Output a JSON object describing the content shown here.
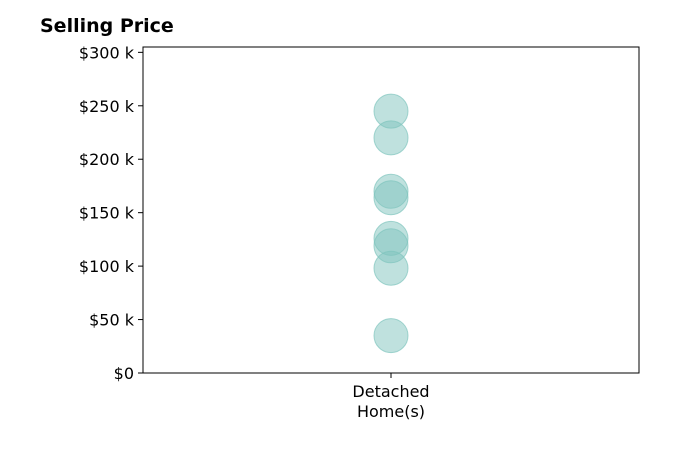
{
  "chart_data": {
    "type": "scatter",
    "title": "Selling Price",
    "xlabel": "",
    "ylabel": "",
    "categories": [
      "Detached\nHome(s)"
    ],
    "category_label_lines": [
      "Detached",
      "Home(s)"
    ],
    "ylim": [
      0,
      305000
    ],
    "yticks": [
      0,
      50000,
      100000,
      150000,
      200000,
      250000,
      300000
    ],
    "ytick_labels": [
      "$0",
      "$50 k",
      "$100 k",
      "$150 k",
      "$200 k",
      "$250 k",
      "$300 k"
    ],
    "grid": false,
    "legend": "none",
    "point_color": "#7fc4bd",
    "series": [
      {
        "category": "Detached\nHome(s)",
        "values": [
          245000,
          220000,
          170000,
          164000,
          126000,
          119000,
          98000,
          35000
        ]
      }
    ]
  }
}
